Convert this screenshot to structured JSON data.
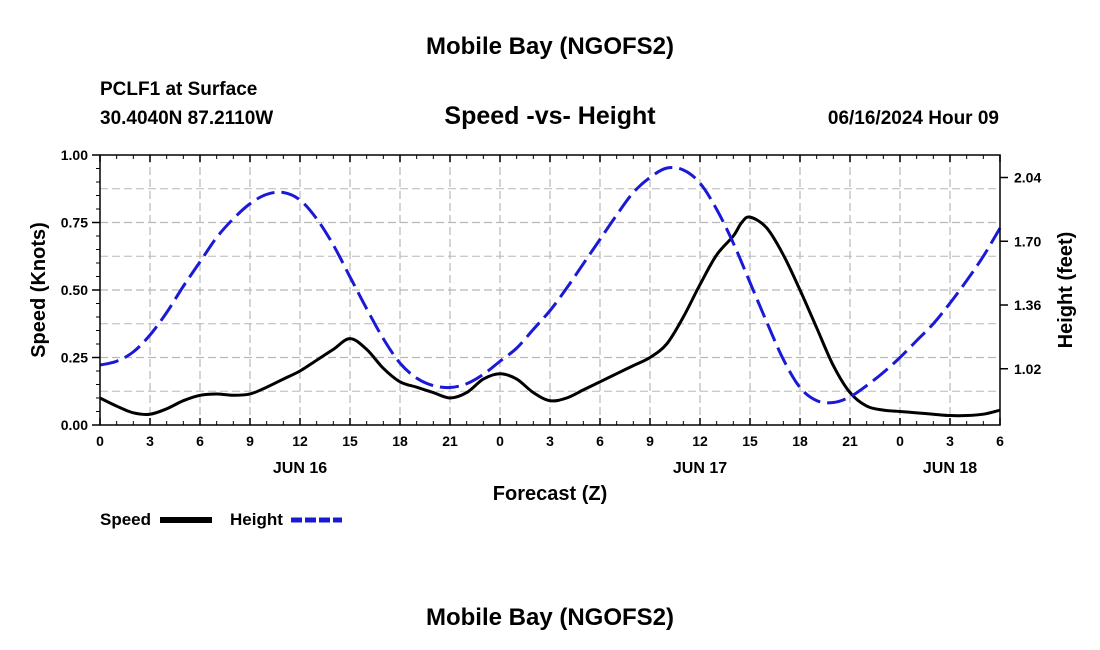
{
  "page_title": "Mobile Bay (NGOFS2)",
  "footer_title": "Mobile Bay (NGOFS2)",
  "colors": {
    "speed": "#000000",
    "height": "#1a1ad6",
    "grid": "#b8b8b8"
  },
  "chart_data": {
    "type": "line",
    "title": "Speed -vs- Height",
    "station": "PCLF1 at Surface",
    "coordinates": "30.4040N  87.2110W",
    "timestamp": "06/16/2024 Hour 09",
    "xlabel": "Forecast (Z)",
    "ylabel_left": "Speed (Knots)",
    "ylabel_right": "Height (feet)",
    "x_range_hours": [
      0,
      54
    ],
    "ylim_left": [
      0,
      1
    ],
    "ylim_right": [
      0.72,
      2.16
    ],
    "x_ticks": [
      {
        "h": 0,
        "label": "0"
      },
      {
        "h": 3,
        "label": "3"
      },
      {
        "h": 6,
        "label": "6"
      },
      {
        "h": 9,
        "label": "9"
      },
      {
        "h": 12,
        "label": "12"
      },
      {
        "h": 15,
        "label": "15"
      },
      {
        "h": 18,
        "label": "18"
      },
      {
        "h": 21,
        "label": "21"
      },
      {
        "h": 24,
        "label": "0"
      },
      {
        "h": 27,
        "label": "3"
      },
      {
        "h": 30,
        "label": "6"
      },
      {
        "h": 33,
        "label": "9"
      },
      {
        "h": 36,
        "label": "12"
      },
      {
        "h": 39,
        "label": "15"
      },
      {
        "h": 42,
        "label": "18"
      },
      {
        "h": 45,
        "label": "21"
      },
      {
        "h": 48,
        "label": "0"
      },
      {
        "h": 51,
        "label": "3"
      },
      {
        "h": 54,
        "label": "6"
      }
    ],
    "date_labels": [
      {
        "h": 12,
        "label": "JUN 16"
      },
      {
        "h": 36,
        "label": "JUN 17"
      },
      {
        "h": 51,
        "label": "JUN 18"
      }
    ],
    "y_ticks_left": [
      {
        "v": 0,
        "label": "0.00"
      },
      {
        "v": 0.25,
        "label": "0.25"
      },
      {
        "v": 0.5,
        "label": "0.50"
      },
      {
        "v": 0.75,
        "label": "0.75"
      },
      {
        "v": 1.0,
        "label": "1.00"
      }
    ],
    "y_ticks_right": [
      {
        "v": 1.02,
        "label": "1.02"
      },
      {
        "v": 1.36,
        "label": "1.36"
      },
      {
        "v": 1.7,
        "label": "1.70"
      },
      {
        "v": 2.04,
        "label": "2.04"
      }
    ],
    "series": [
      {
        "name": "Speed",
        "axis": "left",
        "style": "solid",
        "points": [
          [
            0,
            0.1
          ],
          [
            1,
            0.07
          ],
          [
            2,
            0.045
          ],
          [
            3,
            0.04
          ],
          [
            4,
            0.06
          ],
          [
            5,
            0.09
          ],
          [
            6,
            0.11
          ],
          [
            7,
            0.115
          ],
          [
            8,
            0.11
          ],
          [
            9,
            0.115
          ],
          [
            10,
            0.14
          ],
          [
            11,
            0.17
          ],
          [
            12,
            0.2
          ],
          [
            13,
            0.24
          ],
          [
            14,
            0.28
          ],
          [
            15,
            0.32
          ],
          [
            16,
            0.28
          ],
          [
            17,
            0.21
          ],
          [
            18,
            0.16
          ],
          [
            19,
            0.14
          ],
          [
            20,
            0.12
          ],
          [
            21,
            0.1
          ],
          [
            22,
            0.12
          ],
          [
            23,
            0.17
          ],
          [
            24,
            0.19
          ],
          [
            25,
            0.17
          ],
          [
            26,
            0.12
          ],
          [
            27,
            0.09
          ],
          [
            28,
            0.1
          ],
          [
            29,
            0.13
          ],
          [
            30,
            0.16
          ],
          [
            31,
            0.19
          ],
          [
            32,
            0.22
          ],
          [
            33,
            0.25
          ],
          [
            34,
            0.3
          ],
          [
            35,
            0.4
          ],
          [
            36,
            0.52
          ],
          [
            37,
            0.63
          ],
          [
            38,
            0.7
          ],
          [
            38.5,
            0.75
          ],
          [
            39,
            0.77
          ],
          [
            40,
            0.73
          ],
          [
            41,
            0.63
          ],
          [
            42,
            0.5
          ],
          [
            43,
            0.36
          ],
          [
            44,
            0.22
          ],
          [
            45,
            0.12
          ],
          [
            46,
            0.07
          ],
          [
            47,
            0.055
          ],
          [
            48,
            0.05
          ],
          [
            49,
            0.045
          ],
          [
            50,
            0.04
          ],
          [
            51,
            0.035
          ],
          [
            52,
            0.035
          ],
          [
            53,
            0.04
          ],
          [
            54,
            0.055
          ]
        ]
      },
      {
        "name": "Height",
        "axis": "right",
        "style": "dashed",
        "points": [
          [
            0,
            1.04
          ],
          [
            1,
            1.06
          ],
          [
            2,
            1.11
          ],
          [
            3,
            1.2
          ],
          [
            4,
            1.32
          ],
          [
            5,
            1.46
          ],
          [
            6,
            1.59
          ],
          [
            7,
            1.72
          ],
          [
            8,
            1.82
          ],
          [
            9,
            1.9
          ],
          [
            10,
            1.95
          ],
          [
            11,
            1.96
          ],
          [
            12,
            1.92
          ],
          [
            13,
            1.82
          ],
          [
            14,
            1.68
          ],
          [
            15,
            1.51
          ],
          [
            16,
            1.34
          ],
          [
            17,
            1.18
          ],
          [
            18,
            1.05
          ],
          [
            19,
            0.97
          ],
          [
            20,
            0.93
          ],
          [
            21,
            0.92
          ],
          [
            22,
            0.94
          ],
          [
            23,
            0.99
          ],
          [
            24,
            1.06
          ],
          [
            25,
            1.13
          ],
          [
            26,
            1.23
          ],
          [
            27,
            1.33
          ],
          [
            28,
            1.45
          ],
          [
            29,
            1.58
          ],
          [
            30,
            1.71
          ],
          [
            31,
            1.84
          ],
          [
            32,
            1.96
          ],
          [
            33,
            2.04
          ],
          [
            34,
            2.09
          ],
          [
            35,
            2.08
          ],
          [
            36,
            2.01
          ],
          [
            37,
            1.87
          ],
          [
            38,
            1.69
          ],
          [
            39,
            1.48
          ],
          [
            40,
            1.27
          ],
          [
            41,
            1.07
          ],
          [
            42,
            0.92
          ],
          [
            43,
            0.85
          ],
          [
            44,
            0.84
          ],
          [
            45,
            0.87
          ],
          [
            46,
            0.93
          ],
          [
            47,
            1.0
          ],
          [
            48,
            1.08
          ],
          [
            49,
            1.17
          ],
          [
            50,
            1.26
          ],
          [
            51,
            1.37
          ],
          [
            52,
            1.49
          ],
          [
            53,
            1.62
          ],
          [
            54,
            1.77
          ]
        ]
      }
    ],
    "legend": [
      {
        "name": "Speed",
        "style": "solid"
      },
      {
        "name": "Height",
        "style": "dashed"
      }
    ]
  }
}
